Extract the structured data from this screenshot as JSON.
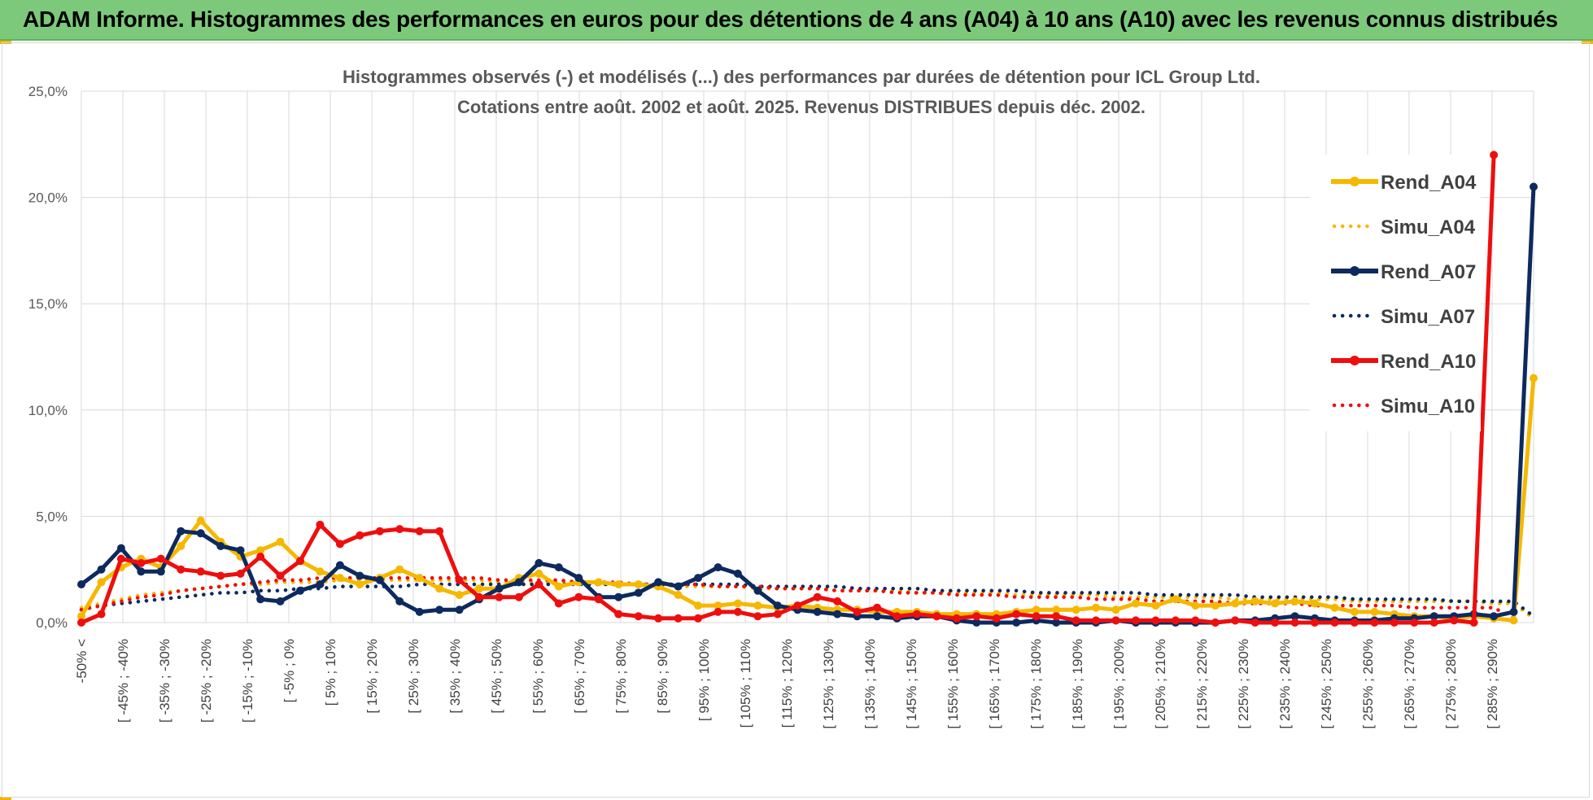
{
  "banner": {
    "title": "ADAM Informe. Histogrammes des performances en euros pour des détentions de 4 ans (A04) à 10 ans (A10) avec les revenus connus distribués"
  },
  "colors": {
    "banner_bg": "#7dc97b",
    "A04": "#f5b800",
    "A07": "#0d2a5e",
    "A10": "#ee0e0e",
    "grid": "#d9d9d9"
  },
  "chart_data": {
    "type": "line",
    "title": "Histogrammes observés (-) et modélisés (...) des performances par durées de détention pour ICL Group Ltd.",
    "subtitle": "Cotations entre août. 2002 et août. 2025. Revenus DISTRIBUES depuis déc. 2002.",
    "ylim": [
      0,
      25
    ],
    "yticks": [
      "0,0%",
      "5,0%",
      "10,0%",
      "15,0%",
      "20,0%",
      "25,0%"
    ],
    "grid": true,
    "legend_position": "right",
    "xtick_labels": [
      "-50% <",
      "[ -45% ; -40%",
      "[ -35% ; -30%",
      "[ -25% ; -20%",
      "[ -15% ; -10%",
      "[ -5% ; 0%",
      "[ 5% ; 10%",
      "[ 15% ; 20%",
      "[ 25% ; 30%",
      "[ 35% ; 40%",
      "[ 45% ; 50%",
      "[ 55% ; 60%",
      "[ 65% ; 70%",
      "[ 75% ; 80%",
      "[ 85% ; 90%",
      "[ 95% ; 100%",
      "[ 105% ; 110%",
      "[ 115% ; 120%",
      "[ 125% ; 130%",
      "[ 135% ; 140%",
      "[ 145% ; 150%",
      "[ 155% ; 160%",
      "[ 165% ; 170%",
      "[ 175% ; 180%",
      "[ 185% ; 190%",
      "[ 195% ; 200%",
      "[ 205% ; 210%",
      "[ 215% ; 220%",
      "[ 225% ; 230%",
      "[ 235% ; 240%",
      "[ 245% ; 250%",
      "[ 255% ; 260%",
      "[ 265% ; 270%",
      "[ 275% ; 280%",
      "[ 285% ; 290%"
    ],
    "series": [
      {
        "name": "Rend_A04",
        "style": "solid",
        "color": "#f5b800",
        "values": [
          0.3,
          1.9,
          2.6,
          3.0,
          2.6,
          3.6,
          4.8,
          3.8,
          3.1,
          3.4,
          3.8,
          2.9,
          2.4,
          2.1,
          1.8,
          2.1,
          2.5,
          2.1,
          1.6,
          1.3,
          1.6,
          1.6,
          2.1,
          2.3,
          1.7,
          1.9,
          1.9,
          1.8,
          1.8,
          1.7,
          1.3,
          0.8,
          0.8,
          0.9,
          0.8,
          0.7,
          0.8,
          0.7,
          0.6,
          0.6,
          0.5,
          0.5,
          0.5,
          0.4,
          0.4,
          0.4,
          0.4,
          0.5,
          0.6,
          0.6,
          0.6,
          0.7,
          0.6,
          0.9,
          0.8,
          1.1,
          0.8,
          0.8,
          0.9,
          1.0,
          0.9,
          1.0,
          0.9,
          0.7,
          0.5,
          0.5,
          0.4,
          0.3,
          0.3,
          0.2,
          0.3,
          0.2,
          0.1,
          11.5
        ]
      },
      {
        "name": "Simu_A04",
        "style": "dotted",
        "color": "#f5b800",
        "values": [
          0.7,
          0.9,
          1.1,
          1.3,
          1.4,
          1.5,
          1.6,
          1.7,
          1.8,
          1.8,
          1.9,
          1.9,
          1.9,
          2.0,
          2.0,
          2.0,
          2.0,
          2.0,
          2.0,
          2.0,
          2.0,
          1.9,
          1.9,
          1.9,
          1.9,
          1.9,
          1.8,
          1.8,
          1.8,
          1.8,
          1.7,
          1.7,
          1.7,
          1.7,
          1.6,
          1.6,
          1.6,
          1.6,
          1.5,
          1.5,
          1.5,
          1.5,
          1.4,
          1.4,
          1.4,
          1.4,
          1.4,
          1.3,
          1.3,
          1.3,
          1.3,
          1.3,
          1.2,
          1.2,
          1.2,
          1.2,
          1.2,
          1.2,
          1.1,
          1.1,
          1.1,
          1.1,
          1.1,
          1.1,
          1.0,
          1.0,
          1.0,
          1.0,
          1.0,
          1.0,
          1.0,
          0.9,
          0.9,
          0.2
        ]
      },
      {
        "name": "Rend_A07",
        "style": "solid",
        "color": "#0d2a5e",
        "values": [
          1.8,
          2.5,
          3.5,
          2.4,
          2.4,
          4.3,
          4.2,
          3.6,
          3.4,
          1.1,
          1.0,
          1.5,
          1.8,
          2.7,
          2.2,
          2.0,
          1.0,
          0.5,
          0.6,
          0.6,
          1.1,
          1.6,
          1.9,
          2.8,
          2.6,
          2.1,
          1.2,
          1.2,
          1.4,
          1.9,
          1.7,
          2.1,
          2.6,
          2.3,
          1.5,
          0.8,
          0.6,
          0.5,
          0.4,
          0.3,
          0.3,
          0.2,
          0.3,
          0.3,
          0.1,
          0.0,
          0.0,
          0.0,
          0.1,
          0.0,
          0.0,
          0.0,
          0.1,
          0.0,
          0.0,
          0.0,
          0.0,
          0.0,
          0.1,
          0.1,
          0.2,
          0.3,
          0.2,
          0.1,
          0.1,
          0.1,
          0.2,
          0.2,
          0.3,
          0.3,
          0.4,
          0.3,
          0.5,
          20.5
        ]
      },
      {
        "name": "Simu_A07",
        "style": "dotted",
        "color": "#0d2a5e",
        "values": [
          0.6,
          0.8,
          0.9,
          1.0,
          1.1,
          1.2,
          1.3,
          1.4,
          1.4,
          1.5,
          1.5,
          1.6,
          1.6,
          1.7,
          1.7,
          1.7,
          1.7,
          1.8,
          1.8,
          1.8,
          1.8,
          1.8,
          1.8,
          1.8,
          1.8,
          1.8,
          1.8,
          1.8,
          1.8,
          1.8,
          1.8,
          1.8,
          1.8,
          1.8,
          1.7,
          1.7,
          1.7,
          1.7,
          1.7,
          1.6,
          1.6,
          1.6,
          1.6,
          1.5,
          1.5,
          1.5,
          1.5,
          1.5,
          1.4,
          1.4,
          1.4,
          1.4,
          1.4,
          1.4,
          1.3,
          1.3,
          1.3,
          1.3,
          1.3,
          1.2,
          1.2,
          1.2,
          1.2,
          1.2,
          1.1,
          1.1,
          1.1,
          1.1,
          1.1,
          1.0,
          1.0,
          1.0,
          1.0,
          0.3
        ]
      },
      {
        "name": "Rend_A10",
        "style": "solid",
        "color": "#ee0e0e",
        "values": [
          0.0,
          0.4,
          3.0,
          2.8,
          3.0,
          2.5,
          2.4,
          2.2,
          2.3,
          3.1,
          2.2,
          2.9,
          4.6,
          3.7,
          4.1,
          4.3,
          4.4,
          4.3,
          4.3,
          2.0,
          1.2,
          1.2,
          1.2,
          1.8,
          0.9,
          1.2,
          1.1,
          0.4,
          0.3,
          0.2,
          0.2,
          0.2,
          0.5,
          0.5,
          0.3,
          0.4,
          0.8,
          1.2,
          1.0,
          0.5,
          0.7,
          0.3,
          0.4,
          0.3,
          0.2,
          0.3,
          0.2,
          0.4,
          0.3,
          0.3,
          0.1,
          0.1,
          0.1,
          0.1,
          0.1,
          0.1,
          0.1,
          0.0,
          0.1,
          0.0,
          0.0,
          0.0,
          0.0,
          0.0,
          0.0,
          0.0,
          0.0,
          0.0,
          0.0,
          0.1,
          0.0,
          22.0
        ]
      },
      {
        "name": "Simu_A10",
        "style": "dotted",
        "color": "#ee0e0e",
        "values": [
          0.6,
          0.8,
          1.0,
          1.2,
          1.3,
          1.5,
          1.6,
          1.7,
          1.8,
          1.9,
          2.0,
          2.0,
          2.1,
          2.1,
          2.1,
          2.1,
          2.1,
          2.1,
          2.1,
          2.1,
          2.1,
          2.0,
          2.0,
          2.0,
          2.0,
          1.9,
          1.9,
          1.9,
          1.8,
          1.8,
          1.8,
          1.8,
          1.7,
          1.7,
          1.7,
          1.6,
          1.6,
          1.6,
          1.5,
          1.5,
          1.5,
          1.4,
          1.4,
          1.4,
          1.3,
          1.3,
          1.3,
          1.2,
          1.2,
          1.2,
          1.2,
          1.1,
          1.1,
          1.1,
          1.0,
          1.0,
          1.0,
          1.0,
          0.9,
          0.9,
          0.9,
          0.9,
          0.8,
          0.8,
          0.8,
          0.8,
          0.8,
          0.7,
          0.7,
          0.7,
          0.7,
          0.7,
          0.2
        ]
      }
    ]
  }
}
